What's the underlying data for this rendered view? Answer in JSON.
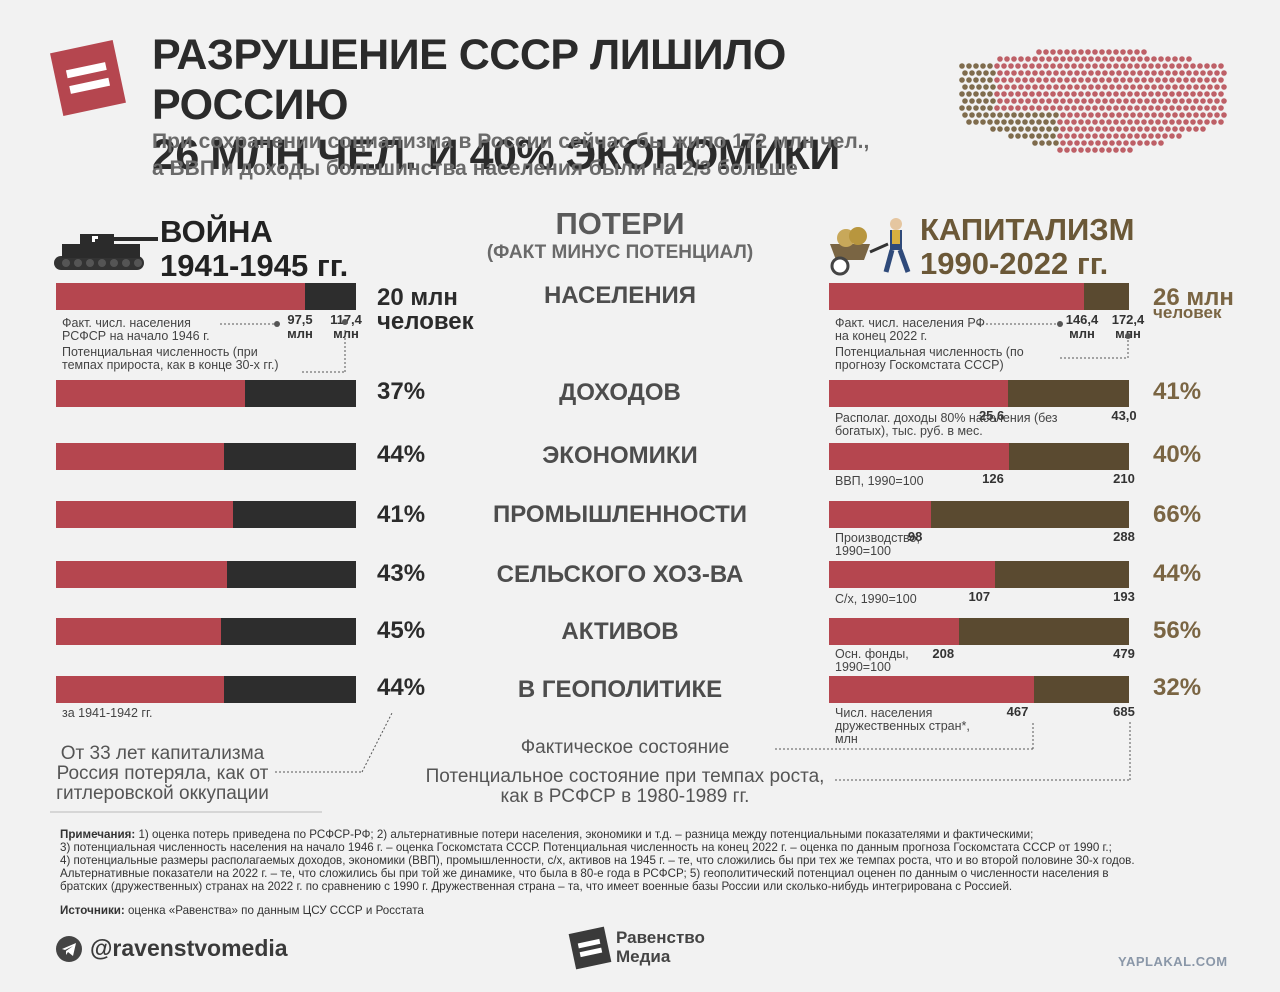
{
  "header": {
    "title_line1": "РАЗРУШЕНИЕ СССР ЛИШИЛО РОССИЮ",
    "title_line2": "26 МЛН ЧЕЛ. И 40% ЭКОНОМИКИ",
    "subtitle_line1": "При сохранении социализма в России сейчас бы жило 172 млн чел.,",
    "subtitle_line2": "а ВВП и доходы большинства населения были на 2/3 больше"
  },
  "war": {
    "label": "ВОЙНА",
    "years": "1941-1945 гг."
  },
  "center": {
    "label": "ПОТЕРИ",
    "sublabel": "(ФАКТ МИНУС ПОТЕНЦИАЛ)"
  },
  "capitalism": {
    "label": "КАПИТАЛИЗМ",
    "years": "1990-2022 гг."
  },
  "chart_data": [
    {
      "type": "bar",
      "title": "ВОЙНА 1941-1945 гг.",
      "categories": [
        "НАСЕЛЕНИЯ",
        "ДОХОДОВ",
        "ЭКОНОМИКИ",
        "ПРОМЫШЛЕННОСТИ",
        "СЕЛЬСКОГО ХОЗ-ВА",
        "АКТИВОВ",
        "В ГЕОПОЛИТИКЕ"
      ],
      "fact_share": [
        0.83,
        0.63,
        0.56,
        0.59,
        0.57,
        0.55,
        0.56
      ],
      "loss_labels": [
        "20 млн",
        "37%",
        "44%",
        "41%",
        "43%",
        "45%",
        "44%"
      ],
      "loss_unit": "человек",
      "population": {
        "fact": "97,5",
        "potential": "117,4",
        "unit": "млн"
      }
    },
    {
      "type": "bar",
      "title": "КАПИТАЛИЗМ 1990-2022 гг.",
      "categories": [
        "НАСЕЛЕНИЯ",
        "ДОХОДОВ",
        "ЭКОНОМИКИ",
        "ПРОМЫШЛЕННОСТИ",
        "СЕЛЬСКОГО ХОЗ-ВА",
        "АКТИВОВ",
        "В ГЕОПОЛИТИКЕ"
      ],
      "fact_values": [
        146.4,
        25.6,
        126,
        98,
        107,
        208,
        467
      ],
      "potential_values": [
        172.4,
        43.0,
        210,
        288,
        193,
        479,
        685
      ],
      "fact_labels": [
        "146,4",
        "25,6",
        "126",
        "98",
        "107",
        "208",
        "467"
      ],
      "potential_labels": [
        "172,4",
        "43,0",
        "210",
        "288",
        "193",
        "479",
        "685"
      ],
      "loss_labels": [
        "26 млн",
        "41%",
        "40%",
        "66%",
        "44%",
        "56%",
        "32%"
      ],
      "loss_unit": "человек",
      "population_unit": "млн"
    }
  ],
  "war_notes": {
    "pop_fact": "Факт. числ. населения РСФСР на начало 1946 г.",
    "pop_potential": "Потенциальная численность (при темпах прироста, как в конце 30-х гг.)",
    "geo": "за 1941-1942 гг."
  },
  "cap_notes": {
    "pop_fact": "Факт. числ. населения РФ на конец 2022 г.",
    "pop_potential": "Потенциальная численность (по прогнозу Госкомстата СССР)",
    "income": "Располаг. доходы 80% населения (без богатых), тыс. руб. в мес.",
    "gdp": "ВВП, 1990=100",
    "industry": "Производство, 1990=100",
    "agri": "С/х, 1990=100",
    "assets": "Осн. фонды, 1990=100",
    "geo": "Числ. населения дружественных стран*, млн"
  },
  "callout": "От 33 лет капитализма Россия потеряла, как от гитлеровской оккупации",
  "legend": {
    "fact": "Фактическое состояние",
    "potential": "Потенциальное состояние при темпах роста, как в РСФСР в 1980-1989 гг."
  },
  "footnotes": {
    "label": "Примечания:",
    "text1": " 1) оценка потерь приведена по РСФСР-РФ; 2) альтернативные потери населения, экономики и т.д. – разница между потенциальными показателями и фактическими;",
    "text2": "3) потенциальная численность населения на начало 1946 г. – оценка Госкомстата СССР. Потенциальная численность на конец 2022 г. – оценка по данным прогноза Госкомстата СССР от 1990 г.;",
    "text3": "4) потенциальные размеры располагаемых доходов, экономики (ВВП), промышленности, с/х, активов на 1945 г. – те, что сложились бы при тех же темпах роста, что и во второй половине 30-х годов.",
    "text4": "Альтернативные показатели на 2022 г. – те, что сложились бы при той же динамике, что была в 80-е года в РСФСР; 5) геополитический потенциал оценен по данным о численности населения в",
    "text5": "братских (дружественных) странах на 2022 г. по сравнению с 1990 г. Дружественная страна – та, что имеет военные базы России или сколько-нибудь интегрирована с Россией.",
    "sources_label": "Источники:",
    "sources": " оценка «Равенства» по данным ЦСУ СССР и Росстата"
  },
  "footer": {
    "telegram": "@ravenstvomedia",
    "brand_line1": "Равенство",
    "brand_line2": "Медиа",
    "watermark": "YAPLAKAL.COM"
  },
  "colors": {
    "fact": "#b5464f",
    "war_loss": "#2d2d2d",
    "cap_loss": "#5a4a30",
    "logo": "#b5464f"
  },
  "icons": [
    "equals-logo-icon",
    "russia-map-icon",
    "tank-icon",
    "money-wheelbarrow-icon",
    "telegram-icon"
  ]
}
